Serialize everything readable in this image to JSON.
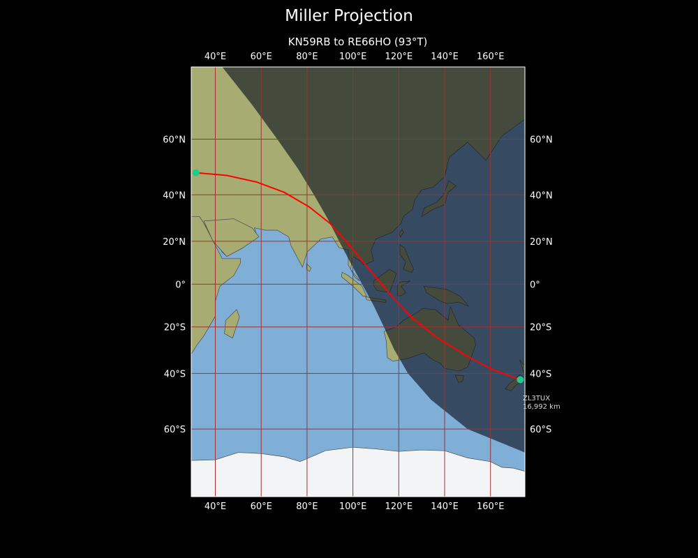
{
  "title": "Miller Projection",
  "subtitle": "KN59RB to RE66HO (93°T)",
  "map": {
    "projection": "Miller",
    "lon_range": [
      29.5,
      175
    ],
    "lat_range": [
      -78,
      79
    ],
    "lon_ticks": [
      {
        "value": 40,
        "label": "40°E"
      },
      {
        "value": 60,
        "label": "60°E"
      },
      {
        "value": 80,
        "label": "80°E"
      },
      {
        "value": 100,
        "label": "100°E"
      },
      {
        "value": 120,
        "label": "120°E"
      },
      {
        "value": 140,
        "label": "140°E"
      },
      {
        "value": 160,
        "label": "160°E"
      }
    ],
    "lat_ticks": [
      {
        "value": 60,
        "label": "60°N"
      },
      {
        "value": 40,
        "label": "40°N"
      },
      {
        "value": 20,
        "label": "20°N"
      },
      {
        "value": 0,
        "label": "0°"
      },
      {
        "value": -20,
        "label": "20°S"
      },
      {
        "value": -40,
        "label": "40°S"
      },
      {
        "value": -60,
        "label": "60°S"
      }
    ],
    "grid": true,
    "colors": {
      "ocean": "#7fafd6",
      "land": "#a7ad72",
      "ice": "#f2f4f6",
      "grid": "#a23030",
      "path": "#ff0000",
      "station": "#1fcc8a",
      "night": "#0a0f1c"
    },
    "path": {
      "from": {
        "lat": 48.5,
        "lon": 31.5
      },
      "to": {
        "lat": -42.5,
        "lon": 173
      },
      "samples": [
        {
          "lat": 48.5,
          "lon": 31.5
        },
        {
          "lat": 47.5,
          "lon": 45
        },
        {
          "lat": 45,
          "lon": 58
        },
        {
          "lat": 41,
          "lon": 70
        },
        {
          "lat": 35,
          "lon": 81
        },
        {
          "lat": 28,
          "lon": 90
        },
        {
          "lat": 20,
          "lon": 97
        },
        {
          "lat": 11,
          "lon": 104
        },
        {
          "lat": 2,
          "lon": 111
        },
        {
          "lat": -7,
          "lon": 118
        },
        {
          "lat": -16,
          "lon": 126
        },
        {
          "lat": -25,
          "lon": 137
        },
        {
          "lat": -33,
          "lon": 150
        },
        {
          "lat": -38.5,
          "lon": 161
        },
        {
          "lat": -42.5,
          "lon": 173
        }
      ]
    },
    "terminator": [
      {
        "lat": 79,
        "lon": 43
      },
      {
        "lat": 70,
        "lon": 56
      },
      {
        "lat": 60,
        "lon": 67
      },
      {
        "lat": 50,
        "lon": 76
      },
      {
        "lat": 40,
        "lon": 83
      },
      {
        "lat": 30,
        "lon": 89
      },
      {
        "lat": 20,
        "lon": 94
      },
      {
        "lat": 10,
        "lon": 99
      },
      {
        "lat": 0,
        "lon": 104
      },
      {
        "lat": -10,
        "lon": 109
      },
      {
        "lat": -20,
        "lon": 113.5
      },
      {
        "lat": -30,
        "lon": 118
      },
      {
        "lat": -40,
        "lon": 124
      },
      {
        "lat": -50,
        "lon": 134
      },
      {
        "lat": -60,
        "lon": 150
      },
      {
        "lat": -67,
        "lon": 175
      }
    ],
    "destination_label": {
      "callsign": "ZL3TUX",
      "distance": "16,992 km"
    }
  }
}
